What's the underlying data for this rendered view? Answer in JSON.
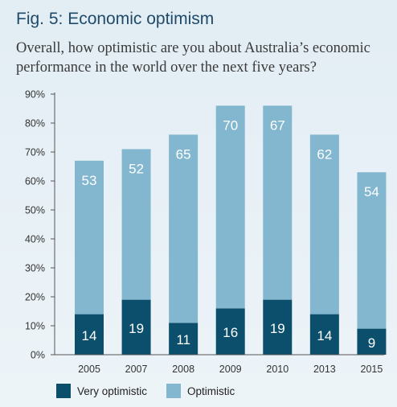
{
  "figure": {
    "title": "Fig. 5:  Economic optimism",
    "subtitle": "Overall, how optimistic are you about Australia’s economic performance in the world over the next five years?"
  },
  "chart_data": {
    "type": "bar",
    "stacked": true,
    "title": "Fig. 5:  Economic optimism",
    "subtitle": "Overall, how optimistic are you about Australia’s economic performance in the world over the next five years?",
    "xlabel": "",
    "ylabel": "",
    "categories": [
      "2005",
      "2007",
      "2008",
      "2009",
      "2010",
      "2013",
      "2015"
    ],
    "series": [
      {
        "name": "Very optimistic",
        "values": [
          14,
          19,
          11,
          16,
          19,
          14,
          9
        ],
        "color": "#0b4f6c"
      },
      {
        "name": "Optimistic",
        "values": [
          53,
          52,
          65,
          70,
          67,
          62,
          54
        ],
        "color": "#82b7cf"
      }
    ],
    "ylim": [
      0,
      90
    ],
    "yticks": [
      "0%",
      "10%",
      "20%",
      "30%",
      "40%",
      "50%",
      "60%",
      "70%",
      "80%",
      "90%"
    ],
    "grid": false,
    "legend_position": "bottom-left"
  }
}
